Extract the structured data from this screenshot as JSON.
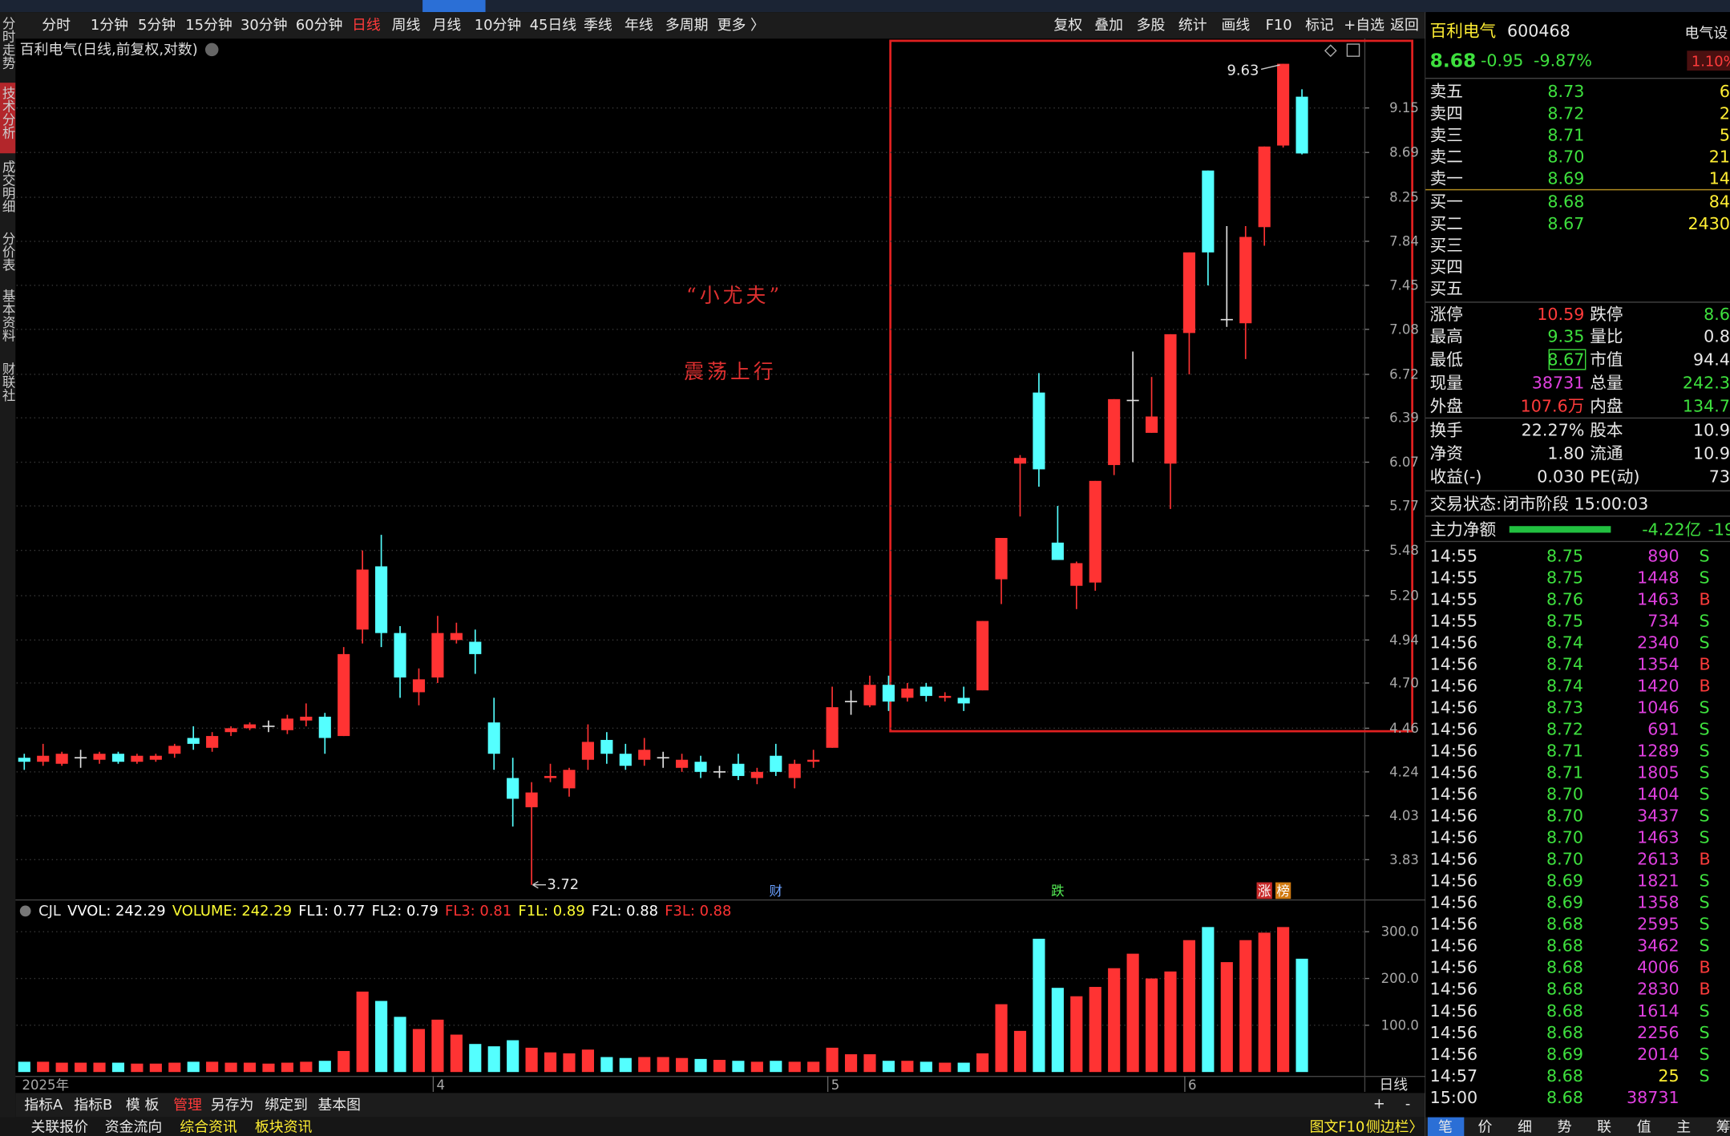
{
  "period_bar": {
    "periods": [
      "分时",
      "1分钟",
      "5分钟",
      "15分钟",
      "30分钟",
      "60分钟",
      "日线",
      "周线",
      "月线",
      "10分钟",
      "45日线",
      "季线",
      "年线",
      "多周期",
      "更多 〉"
    ],
    "tools": [
      "复权",
      "叠加",
      "多股",
      "统计",
      "画线",
      "F10",
      "标记",
      "+自选",
      "返回"
    ]
  },
  "side_tabs": [
    "分时走势",
    "技术分析",
    "成交明细",
    "分价表",
    "基本资料",
    "财联社"
  ],
  "main_chart": {
    "title": "百利电气(日线,前复权,对数)",
    "annotations": [
      "“小尤夫”",
      "震荡上行"
    ],
    "period_label": "日线"
  },
  "chart_data": [
    {
      "type": "candlestick",
      "categories": [
        "2025年",
        null,
        null,
        null,
        null,
        null,
        null,
        null,
        null,
        null,
        null,
        null,
        null,
        null,
        null,
        null,
        null,
        null,
        null,
        null,
        null,
        null,
        "4",
        null,
        null,
        null,
        null,
        null,
        null,
        null,
        null,
        null,
        null,
        null,
        null,
        null,
        null,
        null,
        null,
        null,
        null,
        null,
        null,
        "5",
        null,
        null,
        null,
        null,
        null,
        null,
        null,
        null,
        null,
        null,
        null,
        null,
        null,
        null,
        null,
        null,
        null,
        null,
        "6",
        null,
        null,
        null,
        null,
        null,
        null
      ],
      "events": [
        null,
        null,
        null,
        null,
        null,
        null,
        null,
        null,
        null,
        null,
        null,
        null,
        null,
        null,
        null,
        null,
        null,
        null,
        null,
        null,
        null,
        null,
        null,
        null,
        null,
        null,
        null,
        null,
        null,
        null,
        null,
        null,
        null,
        null,
        null,
        null,
        null,
        null,
        null,
        null,
        "财",
        null,
        null,
        null,
        null,
        null,
        null,
        null,
        null,
        null,
        null,
        null,
        null,
        null,
        null,
        "跌",
        null,
        null,
        null,
        null,
        null,
        null,
        null,
        null,
        null,
        null,
        "涨",
        "榜",
        null
      ],
      "open": [
        4.31,
        4.29,
        4.28,
        4.31,
        4.3,
        4.33,
        4.29,
        4.3,
        4.33,
        4.41,
        4.36,
        4.44,
        4.46,
        4.47,
        4.45,
        4.5,
        4.52,
        4.42,
        5.0,
        5.38,
        4.98,
        4.65,
        4.73,
        4.94,
        4.93,
        4.49,
        4.21,
        4.07,
        4.21,
        4.16,
        4.3,
        4.4,
        4.33,
        4.3,
        4.31,
        4.26,
        4.29,
        4.24,
        4.28,
        4.21,
        4.32,
        4.21,
        4.29,
        4.36,
        4.6,
        4.58,
        4.69,
        4.62,
        4.68,
        4.62,
        4.62,
        4.66,
        5.3,
        6.06,
        6.58,
        5.53,
        5.26,
        5.28,
        6.05,
        6.52,
        6.28,
        6.06,
        7.05,
        8.51,
        7.16,
        7.13,
        7.97,
        8.76,
        9.27
      ],
      "high": [
        4.33,
        4.38,
        4.34,
        4.35,
        4.34,
        4.34,
        4.33,
        4.33,
        4.38,
        4.47,
        4.44,
        4.47,
        4.49,
        4.5,
        4.53,
        4.59,
        4.54,
        4.9,
        5.48,
        5.58,
        5.02,
        4.78,
        5.08,
        5.04,
        5.0,
        4.62,
        4.31,
        4.19,
        4.28,
        4.26,
        4.48,
        4.44,
        4.38,
        4.41,
        4.34,
        4.33,
        4.32,
        4.27,
        4.33,
        4.26,
        4.38,
        4.3,
        4.35,
        4.68,
        4.66,
        4.74,
        4.74,
        4.7,
        4.7,
        4.65,
        4.68,
        5.05,
        5.56,
        6.12,
        6.73,
        5.77,
        5.41,
        5.94,
        6.53,
        6.9,
        6.7,
        7.04,
        7.74,
        8.51,
        7.98,
        7.98,
        8.75,
        9.63,
        9.35
      ],
      "low": [
        4.25,
        4.27,
        4.27,
        4.26,
        4.28,
        4.28,
        4.28,
        4.29,
        4.31,
        4.35,
        4.34,
        4.42,
        4.45,
        4.44,
        4.43,
        4.47,
        4.33,
        4.42,
        4.92,
        4.9,
        4.62,
        4.58,
        4.7,
        4.92,
        4.75,
        4.25,
        3.98,
        3.72,
        4.19,
        4.12,
        4.25,
        4.28,
        4.25,
        4.27,
        4.26,
        4.24,
        4.21,
        4.21,
        4.2,
        4.18,
        4.22,
        4.16,
        4.26,
        4.36,
        4.53,
        4.57,
        4.55,
        4.6,
        4.6,
        4.6,
        4.55,
        4.66,
        5.15,
        5.7,
        5.9,
        5.42,
        5.12,
        5.23,
        5.98,
        6.07,
        6.28,
        5.75,
        6.72,
        7.45,
        7.1,
        6.84,
        7.8,
        8.74,
        8.67
      ],
      "close": [
        4.29,
        4.32,
        4.33,
        4.31,
        4.33,
        4.29,
        4.32,
        4.32,
        4.37,
        4.38,
        4.42,
        4.46,
        4.48,
        4.47,
        4.51,
        4.52,
        4.41,
        4.86,
        5.36,
        4.98,
        4.73,
        4.72,
        4.98,
        4.98,
        4.86,
        4.33,
        4.11,
        4.14,
        4.22,
        4.25,
        4.39,
        4.33,
        4.27,
        4.35,
        4.31,
        4.3,
        4.24,
        4.24,
        4.22,
        4.24,
        4.24,
        4.28,
        4.3,
        4.57,
        4.6,
        4.69,
        4.6,
        4.67,
        4.63,
        4.63,
        4.59,
        5.05,
        5.56,
        6.1,
        6.02,
        5.42,
        5.4,
        5.94,
        6.53,
        6.52,
        6.4,
        7.04,
        7.74,
        7.74,
        7.16,
        7.88,
        8.75,
        9.63,
        8.68
      ],
      "up_color": "#ff3333",
      "down_color": "#54ffff",
      "doji_color": "#e0e0e0",
      "log_scale": true,
      "grid": true,
      "ylim": [
        3.66,
        9.89
      ],
      "yticks": [
        3.83,
        4.03,
        4.24,
        4.46,
        {
          "value": 4.7,
          "label": "4.70"
        },
        4.94,
        {
          "value": 5.2,
          "label": "5.20"
        },
        5.48,
        5.77,
        6.07,
        6.39,
        6.72,
        7.08,
        7.45,
        7.84,
        8.25,
        8.69,
        9.15
      ],
      "max_label": 9.63,
      "min_label": 3.72
    },
    {
      "type": "bar",
      "name": "CJL",
      "legend": [
        {
          "text": "VVOL: 242.29",
          "color": "#ffffff"
        },
        {
          "text": "VOLUME: 242.29",
          "color": "#ffff33"
        },
        {
          "text": "FL1: 0.77",
          "color": "#ffffff"
        },
        {
          "text": "FL2: 0.79",
          "color": "#ffffff"
        },
        {
          "text": "FL3: 0.81",
          "color": "#ff3333"
        },
        {
          "text": "F1L: 0.89",
          "color": "#ffff33"
        },
        {
          "text": "F2L: 0.88",
          "color": "#ffffff"
        },
        {
          "text": "F3L: 0.88",
          "color": "#ff3333"
        }
      ],
      "values": [
        22,
        22,
        20,
        20,
        20,
        20,
        18,
        18,
        20,
        22,
        22,
        20,
        20,
        18,
        20,
        22,
        24,
        45,
        172,
        152,
        118,
        92,
        112,
        80,
        60,
        55,
        68,
        52,
        42,
        40,
        48,
        32,
        30,
        32,
        32,
        30,
        28,
        26,
        24,
        22,
        24,
        22,
        22,
        52,
        38,
        38,
        24,
        24,
        22,
        20,
        20,
        40,
        145,
        88,
        285,
        180,
        162,
        182,
        222,
        253,
        200,
        215,
        282,
        310,
        235,
        282,
        298,
        310,
        242.29
      ],
      "grid": true,
      "ylim": [
        0,
        316
      ],
      "yticks": [
        {
          "value": 100,
          "label": "100.0"
        },
        {
          "value": 200,
          "label": "200.0"
        },
        {
          "value": 300,
          "label": "300.0"
        }
      ]
    }
  ],
  "bottom_toolbar": {
    "tabs": [
      "指标A",
      "指标B",
      "模 板",
      "管理",
      "另存为",
      "绑定到",
      "基本图"
    ],
    "zoom": [
      "+",
      "-"
    ]
  },
  "status_bar": {
    "left": [
      "关联报价",
      "资金流向",
      "综合资讯",
      "板块资讯"
    ],
    "right": [
      "图文F10",
      "侧边栏〉"
    ]
  },
  "quote_panel": {
    "name": "百利电气",
    "code": "600468",
    "sector": "电气设",
    "price": "8.68",
    "change": "-0.95",
    "change_pct": "-9.87%",
    "sector_pct": "1.10%",
    "asks": [
      [
        "卖五",
        "8.73",
        "6"
      ],
      [
        "卖四",
        "8.72",
        "2"
      ],
      [
        "卖三",
        "8.71",
        "5"
      ],
      [
        "卖二",
        "8.70",
        "21"
      ],
      [
        "卖一",
        "8.69",
        "14"
      ]
    ],
    "bids": [
      [
        "买一",
        "8.68",
        "84"
      ],
      [
        "买二",
        "8.67",
        "2430"
      ],
      [
        "买三"
      ],
      [
        "买四"
      ],
      [
        "买五"
      ]
    ],
    "stats": [
      [
        "涨停",
        "10.59",
        "跌停",
        "8.6"
      ],
      [
        "最高",
        "9.35",
        "量比",
        "0.8"
      ],
      [
        "最低",
        "8.67",
        "市值",
        "94.4"
      ],
      [
        "现量",
        "38731",
        "总量",
        "242.3"
      ],
      [
        "外盘",
        "107.6万",
        "内盘",
        "134.7"
      ],
      [
        "换手",
        "22.27%",
        "股本",
        "10.9"
      ],
      [
        "净资",
        "1.80",
        "流通",
        "10.9"
      ],
      [
        "收益(-)",
        "0.030",
        "PE(动)",
        "73"
      ]
    ],
    "trade_status_label": "交易状态:",
    "trade_status": "闭市阶段 15:00:03",
    "main_net_label": "主力净额",
    "main_net": "-4.22亿",
    "main_net_pct": "-19",
    "ticks": [
      [
        "14:55",
        "8.75",
        "890",
        "S"
      ],
      [
        "14:55",
        "8.75",
        "1448",
        "S"
      ],
      [
        "14:55",
        "8.76",
        "1463",
        "B"
      ],
      [
        "14:55",
        "8.75",
        "734",
        "S"
      ],
      [
        "14:56",
        "8.74",
        "2340",
        "S"
      ],
      [
        "14:56",
        "8.74",
        "1354",
        "B"
      ],
      [
        "14:56",
        "8.74",
        "1420",
        "B"
      ],
      [
        "14:56",
        "8.73",
        "1046",
        "S"
      ],
      [
        "14:56",
        "8.72",
        "691",
        "S"
      ],
      [
        "14:56",
        "8.71",
        "1289",
        "S"
      ],
      [
        "14:56",
        "8.71",
        "1805",
        "S"
      ],
      [
        "14:56",
        "8.70",
        "1404",
        "S"
      ],
      [
        "14:56",
        "8.70",
        "3437",
        "S"
      ],
      [
        "14:56",
        "8.70",
        "1463",
        "S"
      ],
      [
        "14:56",
        "8.70",
        "2613",
        "B"
      ],
      [
        "14:56",
        "8.69",
        "1821",
        "S"
      ],
      [
        "14:56",
        "8.69",
        "1358",
        "S"
      ],
      [
        "14:56",
        "8.68",
        "2595",
        "S"
      ],
      [
        "14:56",
        "8.68",
        "3462",
        "S"
      ],
      [
        "14:56",
        "8.68",
        "4006",
        "B"
      ],
      [
        "14:56",
        "8.68",
        "2830",
        "B"
      ],
      [
        "14:56",
        "8.68",
        "1614",
        "S"
      ],
      [
        "14:56",
        "8.68",
        "2256",
        "S"
      ],
      [
        "14:56",
        "8.69",
        "2014",
        "S"
      ],
      [
        "14:57",
        "8.68",
        "25",
        "S"
      ],
      [
        "15:00",
        "8.68",
        "38731"
      ]
    ],
    "tabs": [
      "笔",
      "价",
      "细",
      "势",
      "联",
      "值",
      "主",
      "筹"
    ]
  }
}
